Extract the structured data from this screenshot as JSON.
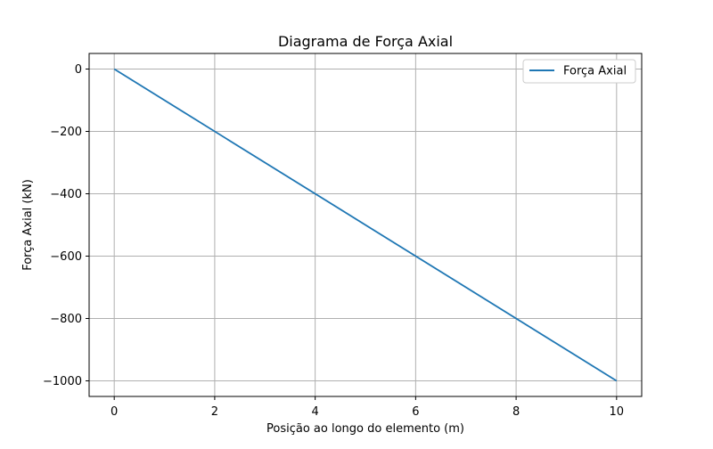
{
  "chart_data": {
    "type": "line",
    "title": "Diagrama de Força Axial",
    "xlabel": "Posição ao longo do elemento (m)",
    "ylabel": "Força Axial (kN)",
    "xlim": [
      -0.5,
      10.5
    ],
    "ylim": [
      -1050,
      50
    ],
    "x_ticks": [
      0,
      2,
      4,
      6,
      8,
      10
    ],
    "x_tick_labels": [
      "0",
      "2",
      "4",
      "6",
      "8",
      "10"
    ],
    "y_ticks": [
      0,
      -200,
      -400,
      -600,
      -800,
      -1000
    ],
    "y_tick_labels": [
      "0",
      "−200",
      "−400",
      "−600",
      "−800",
      "−1000"
    ],
    "grid": true,
    "legend_position": "upper-right",
    "series": [
      {
        "name": "Força Axial",
        "color": "#1f77b4",
        "x": [
          0,
          10
        ],
        "y": [
          0,
          -1000
        ]
      }
    ]
  }
}
